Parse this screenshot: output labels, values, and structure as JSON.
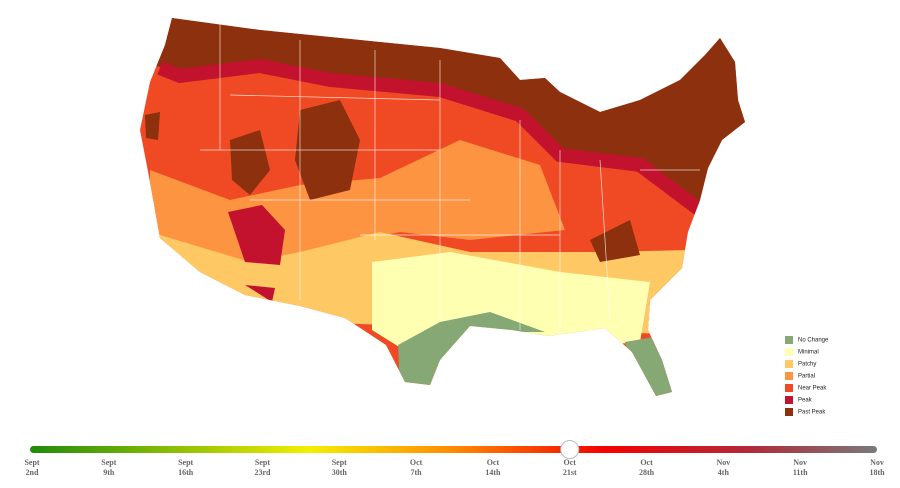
{
  "legend": {
    "items": [
      {
        "label": "No Change",
        "color": "#86a874"
      },
      {
        "label": "Minimal",
        "color": "#ffffb2"
      },
      {
        "label": "Patchy",
        "color": "#fec964"
      },
      {
        "label": "Partial",
        "color": "#fd9442"
      },
      {
        "label": "Near Peak",
        "color": "#ef4a24"
      },
      {
        "label": "Peak",
        "color": "#c3122d"
      },
      {
        "label": "Past Peak",
        "color": "#8c300d"
      }
    ]
  },
  "slider": {
    "selected": 7,
    "dates": [
      {
        "month": "Sept",
        "day": "2nd"
      },
      {
        "month": "Sept",
        "day": "9th"
      },
      {
        "month": "Sept",
        "day": "16th"
      },
      {
        "month": "Sept",
        "day": "23rd"
      },
      {
        "month": "Sept",
        "day": "30th"
      },
      {
        "month": "Oct",
        "day": "7th"
      },
      {
        "month": "Oct",
        "day": "14th"
      },
      {
        "month": "Oct",
        "day": "21st"
      },
      {
        "month": "Oct",
        "day": "28th"
      },
      {
        "month": "Nov",
        "day": "4th"
      },
      {
        "month": "Nov",
        "day": "11th"
      },
      {
        "month": "Nov",
        "day": "18th"
      }
    ]
  }
}
